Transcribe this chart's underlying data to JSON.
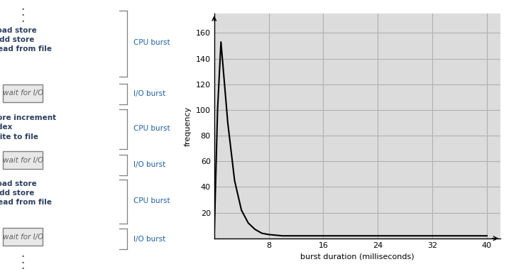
{
  "bg_color": "#ffffff",
  "plot_bg_color": "#dcdcdc",
  "grid_color": "#b0b0b0",
  "curve_color": "#000000",
  "curve_x": [
    0,
    0.5,
    1,
    2,
    3,
    4,
    5,
    6,
    7,
    8,
    10,
    12,
    16,
    20,
    24,
    28,
    32,
    36,
    40
  ],
  "curve_y": [
    0,
    100,
    153,
    90,
    45,
    22,
    12,
    7,
    4,
    3,
    2,
    2,
    2,
    2,
    2,
    2,
    2,
    2,
    2
  ],
  "xlabel": "burst duration (milliseconds)",
  "ylabel": "frequency",
  "xlim": [
    0,
    42
  ],
  "ylim": [
    0,
    175
  ],
  "xticks": [
    0,
    8,
    16,
    24,
    32,
    40
  ],
  "yticks": [
    0,
    20,
    40,
    60,
    80,
    100,
    120,
    140,
    160
  ],
  "axis_color": "#000000",
  "tick_label_fontsize": 8,
  "axis_label_fontsize": 8,
  "left_text_color": "#2c4060",
  "brace_label_color": "#2060a0",
  "brace_color": "#808080",
  "box_edge_color": "#808080",
  "box_face_color": "#e8e8e8",
  "box_text_color": "#606060",
  "dot_color": "#404040"
}
